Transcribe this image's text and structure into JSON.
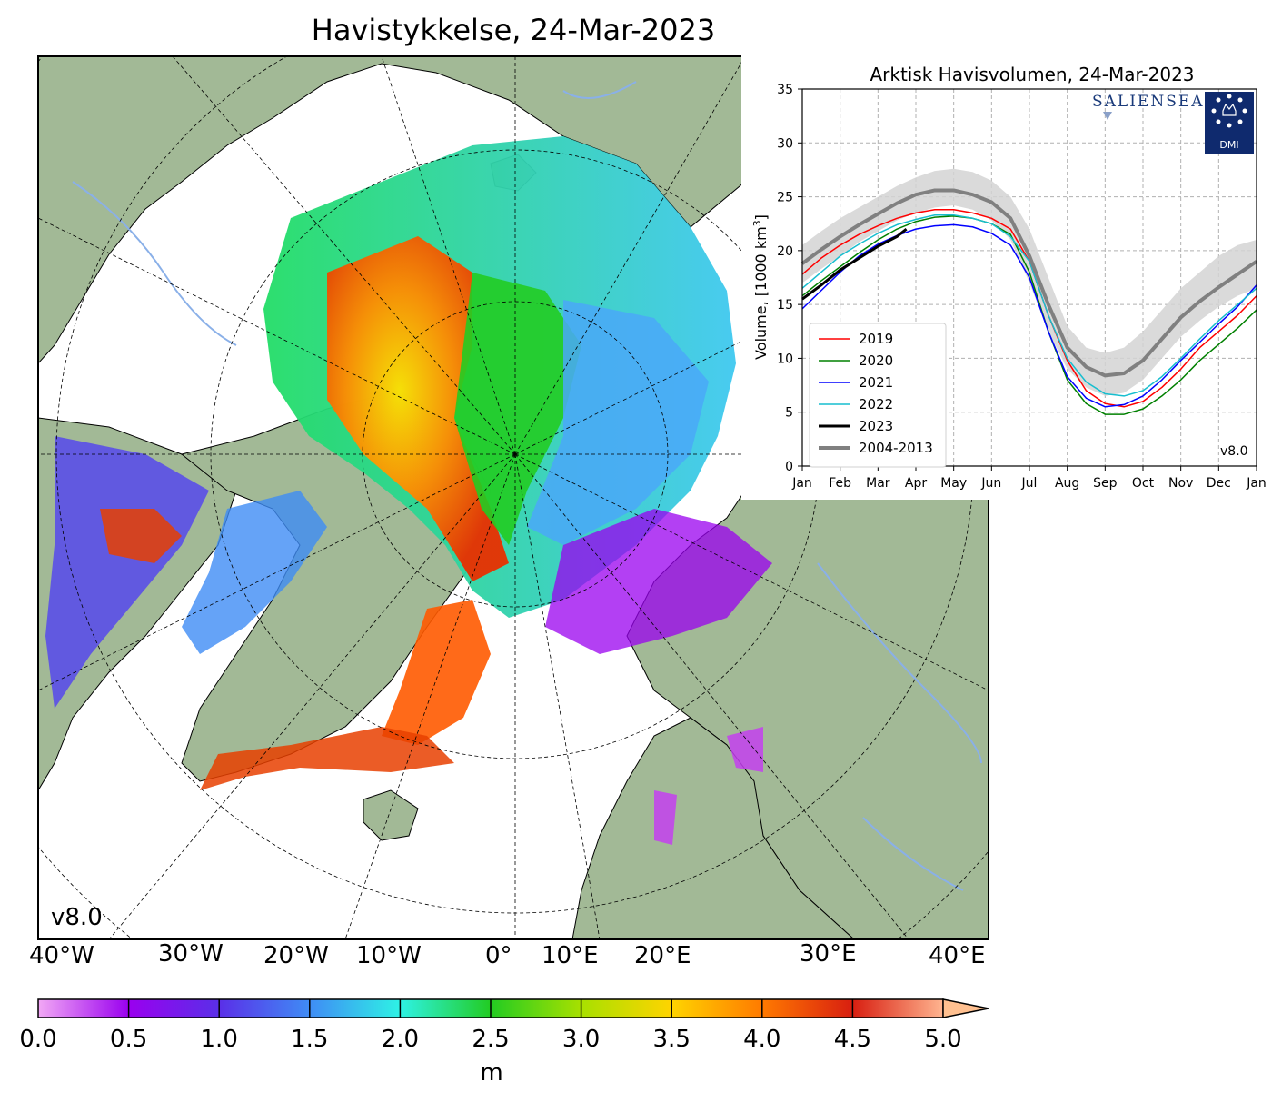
{
  "title": "Havistykkelse, 24-Mar-2023",
  "map": {
    "version_label": "v8.0",
    "longitude_labels": [
      "40°W",
      "30°W",
      "20°W",
      "10°W",
      "0°",
      "10°E",
      "20°E",
      "30°E",
      "40°E"
    ],
    "colors": {
      "land": "#a2b996",
      "ocean": "#ffffff",
      "rivers": "#8ab0e8",
      "graticule": "#000000"
    }
  },
  "colorbar": {
    "ticks": [
      "0.0",
      "0.5",
      "1.0",
      "1.5",
      "2.0",
      "2.5",
      "3.0",
      "3.5",
      "4.0",
      "4.5",
      "5.0"
    ],
    "unit": "m",
    "extend": "max",
    "colors": [
      "#f2a8f5",
      "#9a00ef",
      "#5a2fe8",
      "#3f8cf5",
      "#2ef2e5",
      "#22e88a",
      "#2ccc00",
      "#c8f000",
      "#ffb000",
      "#e32c00",
      "#ffc090"
    ]
  },
  "chart_data": {
    "type": "line",
    "title": "Arktisk Havisvolumen, 24-Mar-2023",
    "ylabel": "Volume, [1000 km",
    "ylabel_sup": "3",
    "ylabel_end": "]",
    "x_ticks": [
      "Jan",
      "Feb",
      "Mar",
      "Apr",
      "May",
      "Jun",
      "Jul",
      "Aug",
      "Sep",
      "Oct",
      "Nov",
      "Dec",
      "Jan"
    ],
    "y_ticks": [
      0,
      5,
      10,
      15,
      20,
      25,
      30,
      35
    ],
    "xlim": [
      0,
      12
    ],
    "ylim": [
      0,
      35
    ],
    "grid": true,
    "legend_position": "lower-left",
    "logo_text": "SALIENSEAS",
    "badge_text": "DMI",
    "version_label": "v8.0",
    "band": {
      "x": [
        0,
        0.5,
        1,
        1.5,
        2,
        2.5,
        3,
        3.5,
        4,
        4.5,
        5,
        5.5,
        6,
        6.5,
        7,
        7.5,
        8,
        8.5,
        9,
        9.5,
        10,
        10.5,
        11,
        11.5,
        12
      ],
      "upper": [
        20.5,
        21.8,
        23.0,
        24.0,
        25.0,
        26.0,
        26.8,
        27.4,
        27.6,
        27.3,
        26.5,
        25.0,
        22.0,
        17.5,
        13.0,
        11.0,
        10.5,
        11.0,
        12.5,
        14.5,
        16.5,
        18.0,
        19.5,
        20.5,
        21.0
      ],
      "lower": [
        17.0,
        18.3,
        19.5,
        20.8,
        21.8,
        22.8,
        23.5,
        24.0,
        24.2,
        23.8,
        22.8,
        21.0,
        17.0,
        12.5,
        9.0,
        7.3,
        6.5,
        6.8,
        8.0,
        10.0,
        12.0,
        13.5,
        14.8,
        15.8,
        16.5
      ]
    },
    "series": [
      {
        "name": "2019",
        "color": "#ff0000",
        "width": 1.5,
        "x": [
          0,
          0.5,
          1,
          1.5,
          2,
          2.5,
          3,
          3.5,
          4,
          4.5,
          5,
          5.5,
          6,
          6.5,
          7,
          7.5,
          8,
          8.5,
          9,
          9.5,
          10,
          10.5,
          11,
          11.5,
          12
        ],
        "values": [
          17.8,
          19.3,
          20.5,
          21.5,
          22.3,
          23.0,
          23.5,
          23.8,
          23.8,
          23.5,
          23.0,
          22.0,
          19.0,
          14.0,
          9.8,
          7.0,
          5.8,
          5.5,
          6.0,
          7.3,
          9.0,
          11.0,
          12.5,
          14.0,
          15.8
        ]
      },
      {
        "name": "2020",
        "color": "#008000",
        "width": 1.5,
        "x": [
          0,
          0.5,
          1,
          1.5,
          2,
          2.5,
          3,
          3.5,
          4,
          4.5,
          5,
          5.5,
          6,
          6.5,
          7,
          7.5,
          8,
          8.5,
          9,
          9.5,
          10,
          10.5,
          11,
          11.5,
          12
        ],
        "values": [
          15.8,
          17.2,
          18.5,
          19.8,
          21.0,
          22.0,
          22.7,
          23.1,
          23.2,
          23.0,
          22.5,
          21.5,
          18.0,
          12.5,
          8.0,
          5.8,
          4.8,
          4.8,
          5.3,
          6.5,
          8.0,
          9.8,
          11.3,
          12.8,
          14.5
        ]
      },
      {
        "name": "2021",
        "color": "#0000ff",
        "width": 1.5,
        "x": [
          0,
          0.5,
          1,
          1.5,
          2,
          2.5,
          3,
          3.5,
          4,
          4.5,
          5,
          5.5,
          6,
          6.5,
          7,
          7.5,
          8,
          8.5,
          9,
          9.5,
          10,
          10.5,
          11,
          11.5,
          12
        ],
        "values": [
          14.6,
          16.3,
          18.0,
          19.5,
          20.6,
          21.4,
          22.0,
          22.3,
          22.4,
          22.2,
          21.6,
          20.5,
          17.5,
          12.5,
          8.3,
          6.3,
          5.5,
          5.7,
          6.5,
          8.0,
          9.8,
          11.5,
          13.2,
          14.8,
          16.8
        ]
      },
      {
        "name": "2022",
        "color": "#17becf",
        "width": 1.5,
        "x": [
          0,
          0.5,
          1,
          1.5,
          2,
          2.5,
          3,
          3.5,
          4,
          4.5,
          5,
          5.5,
          6,
          6.5,
          7,
          7.5,
          8,
          8.5,
          9,
          9.5,
          10,
          10.5,
          11,
          11.5,
          12
        ],
        "values": [
          16.5,
          18.0,
          19.5,
          20.6,
          21.6,
          22.4,
          22.9,
          23.3,
          23.3,
          23.0,
          22.5,
          21.3,
          19.0,
          14.0,
          10.0,
          7.8,
          6.7,
          6.5,
          7.0,
          8.3,
          10.0,
          11.8,
          13.5,
          15.0,
          16.5
        ]
      },
      {
        "name": "2023",
        "color": "#000000",
        "width": 3,
        "x": [
          0,
          0.5,
          1,
          1.5,
          2,
          2.5,
          2.75
        ],
        "values": [
          15.5,
          16.8,
          18.2,
          19.3,
          20.4,
          21.3,
          22.0
        ]
      },
      {
        "name": "2004-2013",
        "color": "#808080",
        "width": 4,
        "x": [
          0,
          0.5,
          1,
          1.5,
          2,
          2.5,
          3,
          3.5,
          4,
          4.5,
          5,
          5.5,
          6,
          6.5,
          7,
          7.5,
          8,
          8.5,
          9,
          9.5,
          10,
          10.5,
          11,
          11.5,
          12
        ],
        "values": [
          18.8,
          20.1,
          21.3,
          22.4,
          23.4,
          24.4,
          25.2,
          25.6,
          25.6,
          25.2,
          24.5,
          23.0,
          19.5,
          15.0,
          11.0,
          9.2,
          8.4,
          8.6,
          9.8,
          11.8,
          13.8,
          15.3,
          16.6,
          17.8,
          19.0
        ]
      }
    ]
  }
}
